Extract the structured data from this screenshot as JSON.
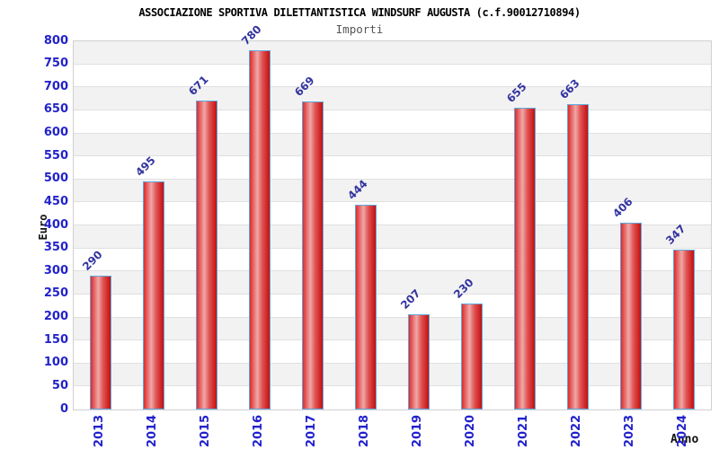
{
  "title": "ASSOCIAZIONE SPORTIVA DILETTANTISTICA WINDSURF AUGUSTA (c.f.90012710894)",
  "subtitle": "Importi",
  "chart_data": {
    "type": "bar",
    "title": "ASSOCIAZIONE SPORTIVA DILETTANTISTICA WINDSURF AUGUSTA (c.f.90012710894)",
    "subtitle": "Importi",
    "xlabel": "Anno",
    "ylabel": "Euro",
    "categories": [
      "2013",
      "2014",
      "2015",
      "2016",
      "2017",
      "2018",
      "2019",
      "2020",
      "2021",
      "2022",
      "2023",
      "2024"
    ],
    "values": [
      290,
      495,
      671,
      780,
      669,
      444,
      207,
      230,
      655,
      663,
      406,
      347
    ],
    "ylim": [
      0,
      800
    ],
    "ytick_step": 50,
    "grid": "horizontal-bands-alternating",
    "legend": "none",
    "bar_label_rotation_deg": -45,
    "x_label_rotation_deg": -90
  },
  "colors": {
    "background": "#ffffff",
    "title": "#000000",
    "subtitle": "#555555",
    "axis_title": "#111111",
    "tick_label": "#2222cc",
    "value_label": "#3333a0",
    "band_gray": "#f2f2f2",
    "grid_line": "#e0e0e0",
    "plot_border": "#d0d0d0",
    "bar_border": "#5fa8dc",
    "bar_red_main": "#dd2b2b",
    "bar_red_light": "#f0a8a8",
    "bar_red_mid": "#e05555",
    "bar_red_dark": "#c50f0f"
  }
}
